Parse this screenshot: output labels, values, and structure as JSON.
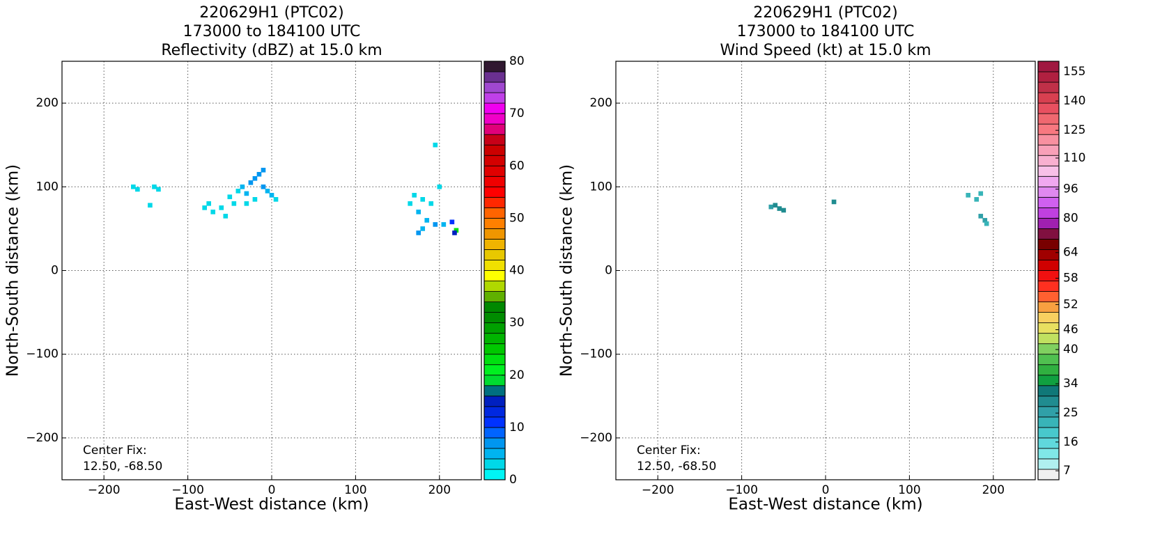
{
  "chart_data": [
    {
      "type": "heatmap",
      "title": [
        "220629H1 (PTC02)",
        "173000 to 184100 UTC",
        "Reflectivity (dBZ) at 15.0 km"
      ],
      "x_label": "East-West distance (km)",
      "y_label": "North-South distance (km)",
      "annotation": [
        "Center Fix:",
        "12.50, -68.50"
      ],
      "xlim": [
        -250,
        250
      ],
      "ylim": [
        -250,
        250
      ],
      "xticks": [
        {
          "value": -200,
          "label": "−200"
        },
        {
          "value": -100,
          "label": "−100"
        },
        0,
        100,
        200
      ],
      "yticks": [
        {
          "value": -200,
          "label": "−200"
        },
        {
          "value": -100,
          "label": "−100"
        },
        0,
        100,
        200
      ],
      "grid": true,
      "x": [
        -165,
        -160,
        -140,
        -135,
        -145,
        -80,
        -75,
        -70,
        -60,
        -55,
        -50,
        -45,
        -40,
        -35,
        -30,
        -25,
        -20,
        -15,
        -10,
        -10,
        -5,
        0,
        5,
        -30,
        -20,
        170,
        180,
        190,
        165,
        175,
        185,
        195,
        205,
        180,
        175,
        200,
        195,
        215,
        220,
        218
      ],
      "y": [
        100,
        97,
        100,
        97,
        78,
        75,
        80,
        70,
        75,
        65,
        88,
        80,
        95,
        100,
        92,
        105,
        110,
        115,
        120,
        100,
        95,
        90,
        85,
        80,
        85,
        90,
        85,
        80,
        80,
        70,
        60,
        55,
        55,
        50,
        45,
        100,
        150,
        58,
        48,
        45
      ],
      "values": [
        2,
        2,
        2,
        2,
        2,
        2,
        2,
        2,
        3,
        2,
        2,
        3,
        3,
        5,
        5,
        6,
        6,
        6,
        7,
        6,
        5,
        4,
        3,
        3,
        3,
        3,
        2,
        3,
        2,
        4,
        5,
        6,
        5,
        5,
        6,
        2,
        2,
        11,
        22,
        15
      ],
      "colorbar": {
        "levels": [
          0,
          2,
          4,
          6,
          8,
          10,
          12,
          14,
          16,
          18,
          20,
          22,
          24,
          26,
          28,
          30,
          32,
          34,
          36,
          38,
          40,
          42,
          44,
          46,
          48,
          50,
          52,
          54,
          56,
          58,
          60,
          62,
          64,
          66,
          68,
          70,
          72,
          74,
          76,
          78,
          80
        ],
        "colors": [
          "#00f5f5",
          "#00d8e8",
          "#00b4f0",
          "#0096f0",
          "#0064ff",
          "#0032ff",
          "#0028e0",
          "#0020c0",
          "#007080",
          "#00dc30",
          "#00f020",
          "#00e010",
          "#00c800",
          "#00b400",
          "#00a000",
          "#008c00",
          "#008800",
          "#60b000",
          "#b0d800",
          "#ffff00",
          "#f0e000",
          "#e8c800",
          "#f0b400",
          "#f09600",
          "#ff8000",
          "#ff6400",
          "#ff2800",
          "#ff0000",
          "#f00000",
          "#e00000",
          "#d40000",
          "#cc0000",
          "#c80018",
          "#e0007a",
          "#f000c8",
          "#f000f0",
          "#c040e8",
          "#a048d0",
          "#6a3090",
          "#301830"
        ],
        "ticks": [
          0,
          10,
          20,
          30,
          40,
          50,
          60,
          70,
          80
        ]
      }
    },
    {
      "type": "heatmap",
      "title": [
        "220629H1 (PTC02)",
        "173000 to 184100 UTC",
        "Wind Speed (kt) at 15.0 km"
      ],
      "x_label": "East-West distance (km)",
      "y_label": "North-South distance (km)",
      "annotation": [
        "Center Fix:",
        "12.50, -68.50"
      ],
      "xlim": [
        -250,
        250
      ],
      "ylim": [
        -250,
        250
      ],
      "xticks": [
        {
          "value": -200,
          "label": "−200"
        },
        {
          "value": -100,
          "label": "−100"
        },
        0,
        100,
        200
      ],
      "yticks": [
        {
          "value": -200,
          "label": "−200"
        },
        {
          "value": -100,
          "label": "−100"
        },
        0,
        100,
        200
      ],
      "grid": true,
      "x": [
        -65,
        -60,
        -55,
        -50,
        10,
        170,
        180,
        185,
        185,
        190,
        192
      ],
      "y": [
        76,
        78,
        74,
        72,
        82,
        90,
        85,
        92,
        65,
        60,
        56
      ],
      "values": [
        26,
        27,
        27,
        28,
        30,
        22,
        23,
        22,
        25,
        24,
        22
      ],
      "colorbar": {
        "levels": [
          4,
          7.5,
          10.7,
          14,
          17.3,
          20.5,
          23.8,
          27,
          30.5,
          33.7,
          35.4,
          37,
          38.7,
          41.6,
          44.9,
          48.1,
          50,
          52.7,
          55,
          57.3,
          60,
          62,
          64.8,
          70,
          75.5,
          80,
          86,
          92.5,
          97,
          102,
          107,
          111,
          117,
          123,
          128,
          134,
          139,
          144,
          150,
          155,
          160
        ],
        "colors": [
          "#f0f0f0",
          "#b0f0f0",
          "#80e8e8",
          "#60d8dc",
          "#48c8cc",
          "#38b4b8",
          "#30a0a8",
          "#208c90",
          "#107878",
          "#10a040",
          "#30b040",
          "#50c050",
          "#80d060",
          "#c0e060",
          "#e8e060",
          "#f8d060",
          "#f8a040",
          "#ff6030",
          "#ff3020",
          "#f01010",
          "#d00000",
          "#a00000",
          "#780000",
          "#801040",
          "#a020b0",
          "#c040e0",
          "#d060f0",
          "#e088f0",
          "#f0a8f0",
          "#f8c0e8",
          "#f8b0d0",
          "#f8a0b8",
          "#f890a0",
          "#f87880",
          "#f06870",
          "#e85060",
          "#d84050",
          "#c03048",
          "#b02040",
          "#a01840"
        ],
        "ticks": [
          7,
          16,
          25,
          34,
          40,
          46,
          52,
          58,
          64,
          80,
          96,
          110,
          125,
          140,
          155
        ]
      }
    }
  ]
}
